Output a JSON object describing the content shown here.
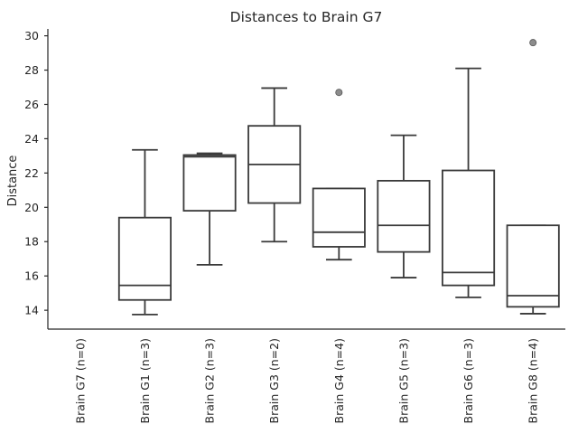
{
  "chart_data": {
    "type": "box",
    "title": "Distances to Brain G7",
    "xlabel": "",
    "ylabel": "Distance",
    "ylim": [
      12.9,
      30.4
    ],
    "yticks": [
      14,
      16,
      18,
      20,
      22,
      24,
      26,
      28,
      30
    ],
    "grid": false,
    "categories": [
      "Brain G7 (n=0)",
      "Brain G1 (n=3)",
      "Brain G2 (n=3)",
      "Brain G3 (n=2)",
      "Brain G4 (n=4)",
      "Brain G5 (n=3)",
      "Brain G6 (n=3)",
      "Brain G8 (n=4)"
    ],
    "boxes": [
      null,
      {
        "whisker_low": 13.75,
        "q1": 14.6,
        "median": 15.45,
        "q3": 19.4,
        "whisker_high": 23.35,
        "outliers": []
      },
      {
        "whisker_low": 16.65,
        "q1": 19.8,
        "median": 22.95,
        "q3": 23.05,
        "whisker_high": 23.15,
        "outliers": []
      },
      {
        "whisker_low": 18.0,
        "q1": 20.25,
        "median": 22.5,
        "q3": 24.75,
        "whisker_high": 26.95,
        "outliers": []
      },
      {
        "whisker_low": 16.95,
        "q1": 17.7,
        "median": 18.55,
        "q3": 21.1,
        "whisker_high": 21.1,
        "outliers": [
          26.7
        ]
      },
      {
        "whisker_low": 15.9,
        "q1": 17.4,
        "median": 18.95,
        "q3": 21.55,
        "whisker_high": 24.2,
        "outliers": []
      },
      {
        "whisker_low": 14.75,
        "q1": 15.45,
        "median": 16.2,
        "q3": 22.15,
        "whisker_high": 28.1,
        "outliers": []
      },
      {
        "whisker_low": 13.8,
        "q1": 14.2,
        "median": 14.85,
        "q3": 18.95,
        "whisker_high": 18.95,
        "outliers": [
          29.6
        ]
      }
    ]
  }
}
